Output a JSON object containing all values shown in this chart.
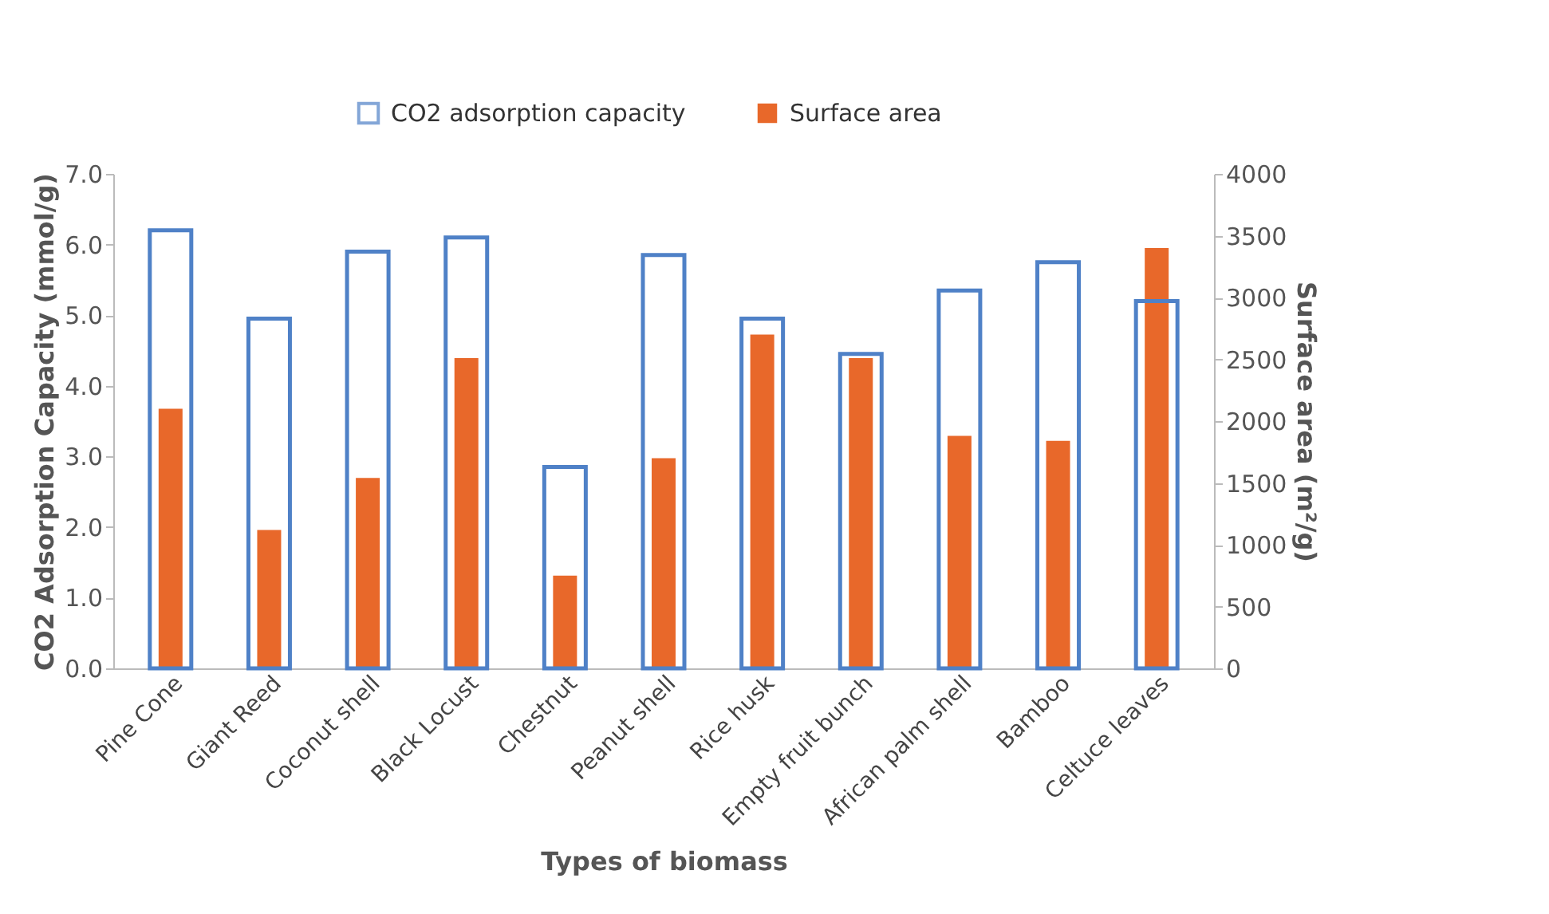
{
  "chart_data": {
    "type": "bar",
    "xlabel": "Types of biomass",
    "ylabel": "CO2 Adsorption Capacity (mmol/g)",
    "y2label": "Surface area (m²/g)",
    "categories": [
      "Pine Cone",
      "Giant Reed",
      "Coconut shell",
      "Black Locust",
      "Chestnut",
      "Peanut shell",
      "Rice husk",
      "Empty fruit bunch",
      "African palm shell",
      "Bamboo",
      "Celtuce leaves"
    ],
    "series": [
      {
        "name": "CO2 adsorption capacity",
        "color": "#4f81c7",
        "values": [
          6.2,
          4.95,
          5.9,
          6.1,
          2.85,
          5.85,
          4.95,
          4.45,
          5.35,
          5.75,
          5.2
        ]
      },
      {
        "name": "Surface area",
        "color": "#e8682a",
        "axis": "y2",
        "values": [
          2100,
          1120,
          1540,
          2510,
          750,
          1700,
          2700,
          2510,
          1880,
          1840,
          3400
        ]
      }
    ],
    "ylim": [
      0,
      7
    ],
    "yticks": [
      {
        "value": 0,
        "label": "0.0"
      },
      {
        "value": 1,
        "label": "1.0"
      },
      {
        "value": 2,
        "label": "2.0"
      },
      {
        "value": 3,
        "label": "3.0"
      },
      {
        "value": 4,
        "label": "4.0"
      },
      {
        "value": 5,
        "label": "5.0"
      },
      {
        "value": 6,
        "label": "6.0"
      },
      {
        "value": 7,
        "label": "7.0"
      }
    ],
    "y2lim": [
      0,
      4000
    ],
    "y2ticks": [
      0,
      500,
      1000,
      1500,
      2000,
      2500,
      3000,
      3500,
      4000
    ],
    "grid": false,
    "legend": "top"
  }
}
